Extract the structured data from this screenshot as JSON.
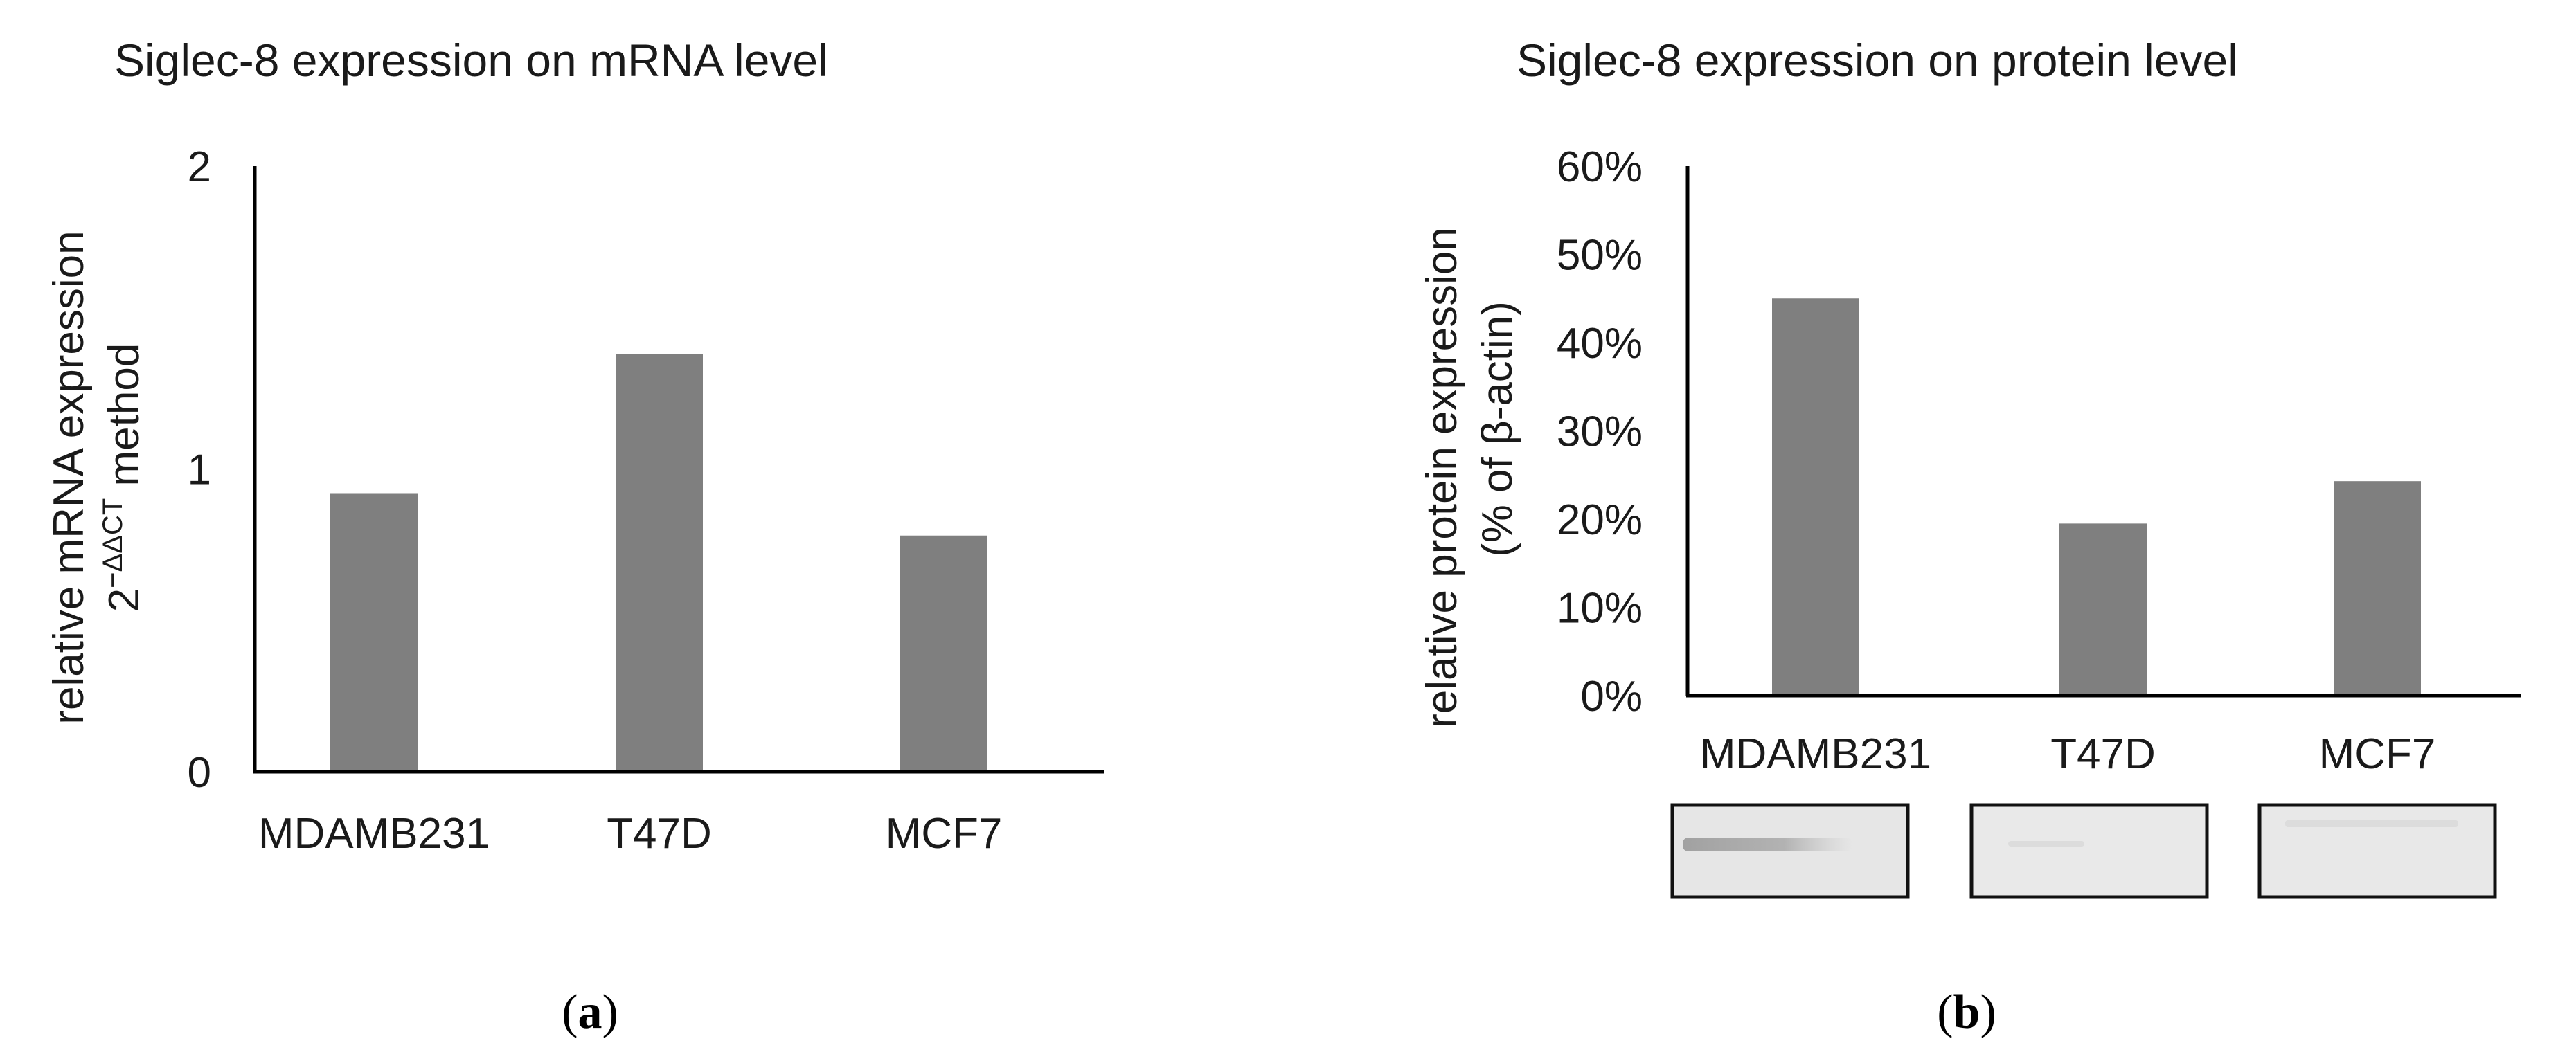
{
  "chart_data": [
    {
      "type": "bar",
      "panel_label": "(a)",
      "panel_letter": "a",
      "title": "Siglec-8 expression on mRNA  level",
      "ylabel": "relative mRNA  expression",
      "ylabel_line2_prefix": "2",
      "ylabel_line2_sup": "−ΔΔCT",
      "ylabel_line2_suffix": " method",
      "xlabel": "",
      "ylim": [
        0,
        2
      ],
      "yticks": [
        0,
        1,
        2
      ],
      "ytick_labels": [
        "0",
        "1",
        "2"
      ],
      "categories": [
        "MDAMB231",
        "T47D",
        "MCF7"
      ],
      "values": [
        0.92,
        1.38,
        0.78
      ],
      "bar_color": "#7f7f7f",
      "grid": false
    },
    {
      "type": "bar",
      "panel_label": "(b)",
      "panel_letter": "b",
      "title": "Siglec-8 expression on protein level",
      "ylabel": "relative protein expression",
      "ylabel_line2": "(% of β-actin)",
      "xlabel": "",
      "ylim": [
        0,
        60
      ],
      "yticks": [
        0,
        10,
        20,
        30,
        40,
        50,
        60
      ],
      "ytick_labels": [
        "0%",
        "10%",
        "20%",
        "30%",
        "40%",
        "50%",
        "60%"
      ],
      "categories": [
        "MDAMB231",
        "T47D",
        "MCF7"
      ],
      "values": [
        45,
        19.5,
        24.3
      ],
      "bar_color": "#7f7f7f",
      "grid": false,
      "western_blot_bands": [
        "MDAMB231",
        "T47D",
        "MCF7"
      ]
    }
  ]
}
